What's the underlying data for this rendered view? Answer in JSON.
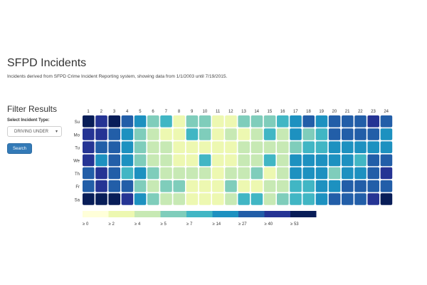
{
  "page": {
    "title": "SFPD Incidents",
    "subtitle": "Incidents derived from SFPD Crime Incident Reporting system, showing data from 1/1/2003 until 7/19/2015."
  },
  "filter": {
    "heading": "Filter Results",
    "select_label": "Select Incident Type:",
    "selected_value": "DRIVING UNDER",
    "caret": "▾",
    "search_label": "Search"
  },
  "chart_data": {
    "type": "heatmap",
    "x_labels": [
      "1",
      "2",
      "3",
      "4",
      "5",
      "6",
      "7",
      "8",
      "9",
      "10",
      "11",
      "12",
      "13",
      "14",
      "15",
      "16",
      "17",
      "18",
      "19",
      "20",
      "21",
      "22",
      "23",
      "24"
    ],
    "y_labels": [
      "Su",
      "Mo",
      "Tu",
      "We",
      "Th",
      "Fr",
      "Sa"
    ],
    "values": [
      [
        8,
        7,
        8,
        6,
        5,
        3,
        4,
        1,
        3,
        3,
        1,
        1,
        3,
        3,
        3,
        4,
        5,
        6,
        5,
        6,
        6,
        6,
        7,
        6
      ],
      [
        7,
        7,
        6,
        5,
        3,
        2,
        1,
        1,
        4,
        3,
        1,
        2,
        1,
        2,
        4,
        2,
        5,
        3,
        4,
        6,
        6,
        6,
        6,
        5
      ],
      [
        7,
        6,
        6,
        5,
        3,
        2,
        2,
        1,
        1,
        1,
        1,
        1,
        2,
        2,
        2,
        2,
        3,
        4,
        4,
        5,
        5,
        5,
        5,
        5
      ],
      [
        7,
        5,
        6,
        5,
        3,
        2,
        2,
        1,
        1,
        4,
        1,
        1,
        2,
        2,
        4,
        2,
        5,
        5,
        5,
        5,
        5,
        4,
        6,
        6
      ],
      [
        6,
        7,
        6,
        4,
        5,
        3,
        2,
        2,
        2,
        2,
        1,
        2,
        2,
        3,
        1,
        2,
        5,
        5,
        5,
        3,
        5,
        5,
        6,
        7
      ],
      [
        6,
        7,
        6,
        6,
        3,
        2,
        3,
        3,
        1,
        1,
        1,
        3,
        1,
        1,
        2,
        2,
        4,
        4,
        5,
        5,
        6,
        6,
        6,
        6
      ],
      [
        9,
        9,
        8,
        7,
        5,
        3,
        2,
        2,
        1,
        1,
        1,
        2,
        4,
        4,
        2,
        3,
        4,
        4,
        5,
        6,
        6,
        6,
        7,
        8
      ]
    ],
    "legend": {
      "labels": [
        "≥ 0",
        "≥ 2",
        "≥ 4",
        "≥ 5",
        "≥ 7",
        "≥ 14",
        "≥ 27",
        "≥ 40",
        "≥ 53"
      ],
      "colors": [
        "#ffffd9",
        "#edf8b1",
        "#c7e9b4",
        "#7fcdbb",
        "#41b6c4",
        "#1d91c0",
        "#225ea8",
        "#253494",
        "#081d58"
      ]
    }
  }
}
